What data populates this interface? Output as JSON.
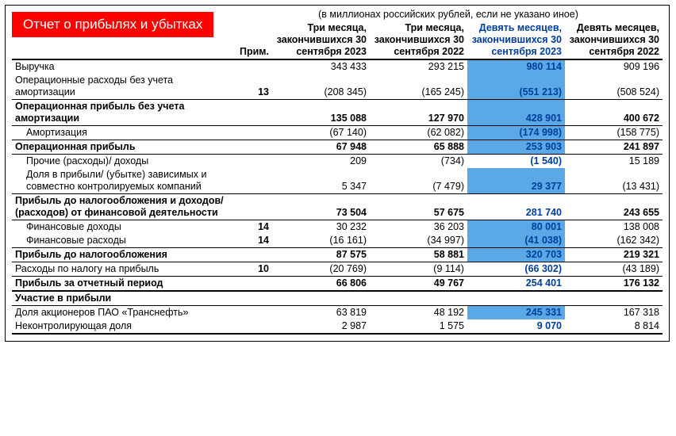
{
  "badge": "Отчет о прибылях и убытках",
  "subtitle": "(в миллионах российских рублей, если не указано иное)",
  "headers": {
    "note": "Прим.",
    "c1": "Три месяца, закончившихся 30 сентября 2023",
    "c2": "Три месяца, закончившихся 30 сентября 2022",
    "c3": "Девять месяцев, закончившихся 30 сентября 2023",
    "c4": "Девять месяцев, закончившихся 30 сентября 2022"
  },
  "colors": {
    "badge_bg": "#ff0000",
    "highlight_bg": "#5aa9e6",
    "blue_text": "#003e9c",
    "border": "#000000"
  },
  "rows": [
    {
      "label": "Выручка",
      "note": "",
      "v1": "343 433",
      "v2": "293 215",
      "v3": "980 114",
      "v4": "909 196",
      "hl3": true
    },
    {
      "label": "Операционные расходы без учета амортизации",
      "note": "13",
      "v1": "(208 345)",
      "v2": "(165 245)",
      "v3": "(551 213)",
      "v4": "(508 524)",
      "hl3": true,
      "border": "b"
    },
    {
      "label": "Операционная прибыль без учета амортизации",
      "bold": true,
      "v1": "135 088",
      "v2": "127 970",
      "v3": "428 901",
      "v4": "400 672",
      "hl3": true,
      "border": "b"
    },
    {
      "label": "Амортизация",
      "indent": true,
      "v1": "(67 140)",
      "v2": "(62 082)",
      "v3": "(174 998)",
      "v4": "(158 775)",
      "hl3": true,
      "border": "b"
    },
    {
      "label": "Операционная прибыль",
      "bold": true,
      "v1": "67 948",
      "v2": "65 888",
      "v3": "253 903",
      "v4": "241 897",
      "hl3": true,
      "border": "b"
    },
    {
      "label": "Прочие (расходы)/ доходы",
      "indent": true,
      "v1": "209",
      "v2": "(734)",
      "v3": "(1 540)",
      "v4": "15 189"
    },
    {
      "label": "Доля в прибыли/ (убытке) зависимых и совместно контролируемых компаний",
      "indent": true,
      "v1": "5 347",
      "v2": "(7 479)",
      "v3": "29 377",
      "v4": "(13 431)",
      "hl3": true,
      "border": "b"
    },
    {
      "label": "Прибыль до налогообложения и доходов/ (расходов) от финансовой деятельности",
      "bold": true,
      "v1": "73 504",
      "v2": "57 675",
      "v3": "281 740",
      "v4": "243 655",
      "border": "b"
    },
    {
      "label": "Финансовые доходы",
      "indent": true,
      "note": "14",
      "v1": "30 232",
      "v2": "36 203",
      "v3": "80 001",
      "v4": "138 008",
      "hl3": true
    },
    {
      "label": "Финансовые расходы",
      "indent": true,
      "note": "14",
      "v1": "(16 161)",
      "v2": "(34 997)",
      "v3": "(41 038)",
      "v4": "(162 342)",
      "hl3": true,
      "border": "b"
    },
    {
      "label": "Прибыль до налогообложения",
      "bold": true,
      "v1": "87 575",
      "v2": "58 881",
      "v3": "320 703",
      "v4": "219 321",
      "hl3": true,
      "border": "b"
    },
    {
      "label": "Расходы по налогу на прибыль",
      "note": "10",
      "v1": "(20 769)",
      "v2": "(9 114)",
      "v3": "(66 302)",
      "v4": "(43 189)",
      "border": "b"
    },
    {
      "label": "Прибыль за отчетный период",
      "bold": true,
      "v1": "66 806",
      "v2": "49 767",
      "v3": "254 401",
      "v4": "176 132",
      "border": "b2"
    },
    {
      "label": "Участие в прибыли",
      "bold": true,
      "border": "b"
    },
    {
      "label": "Доля акционеров ПАО «Транснефть»",
      "v1": "63 819",
      "v2": "48 192",
      "v3": "245 331",
      "v4": "167 318",
      "hl3": true
    },
    {
      "label": "Неконтролирующая доля",
      "v1": "2 987",
      "v2": "1 575",
      "v3": "9 070",
      "v4": "8 814",
      "border": "b2"
    }
  ]
}
